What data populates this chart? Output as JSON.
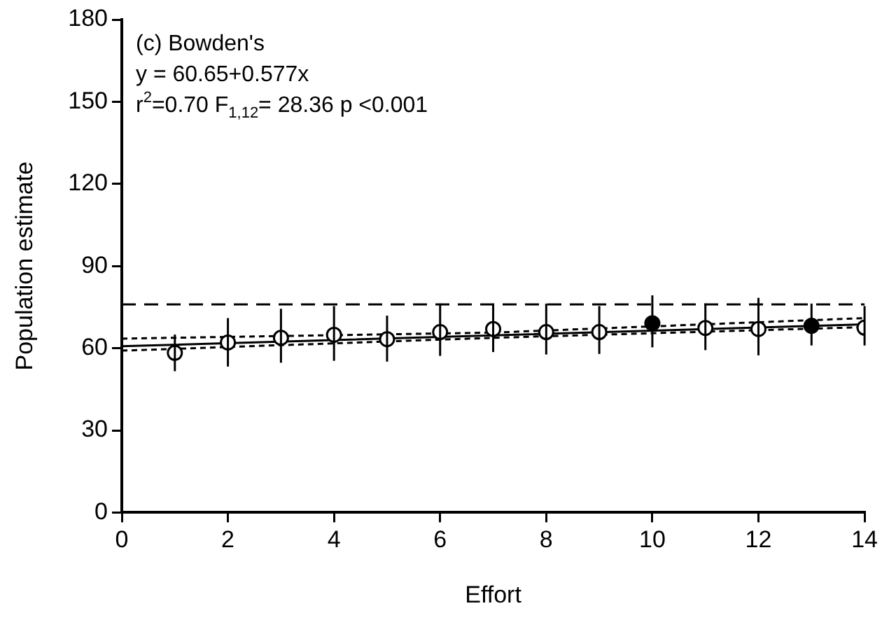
{
  "chart_data": {
    "type": "scatter",
    "xlabel": "Effort",
    "ylabel": "Population estimate",
    "annotations": [
      "(c) Bowden's",
      "y = 60.65+0.577x",
      "r$^{2}$=0.70 F$_{1,12}$= 28.36 p <0.001"
    ],
    "xlim": [
      0,
      14
    ],
    "xticks": [
      0,
      2,
      4,
      6,
      8,
      10,
      12,
      14
    ],
    "ylim": [
      0,
      180
    ],
    "yticks": [
      0,
      30,
      60,
      90,
      120,
      150,
      180
    ],
    "grid": false,
    "legend": false,
    "ref_lines": [
      {
        "axis": "y",
        "value": 76,
        "color": "#000000",
        "line_style": "dashed"
      }
    ],
    "series": [
      {
        "marker": "circle",
        "color": "#000000",
        "x": [
          1,
          2,
          3,
          4,
          5,
          6,
          7,
          8,
          9,
          10,
          11,
          12,
          13,
          14
        ],
        "values": [
          58.3,
          62.1,
          63.8,
          64.9,
          63.3,
          65.9,
          67,
          65.9,
          65.9,
          69.1,
          67.4,
          67,
          68.2,
          67.5
        ],
        "colors": [
          "#ffffff",
          "#ffffff",
          "#ffffff",
          "#ffffff",
          "#ffffff",
          "#ffffff",
          "#ffffff",
          "#ffffff",
          "#ffffff",
          "#000000",
          "#ffffff",
          "#ffffff",
          "#000000",
          "#ffffff"
        ],
        "errors": [
          [
            51.6,
            65
          ],
          [
            53.3,
            71
          ],
          [
            54.7,
            74.4
          ],
          [
            55.4,
            75.4
          ],
          [
            55.1,
            71.9
          ],
          [
            57.2,
            76.3
          ],
          [
            58.6,
            76.3
          ],
          [
            57.7,
            76.3
          ],
          [
            57.9,
            75.4
          ],
          [
            60.3,
            79.3
          ],
          [
            59.3,
            76.3
          ],
          [
            57.4,
            78.4
          ],
          [
            61,
            76.3
          ],
          [
            61,
            75.4
          ]
        ]
      },
      {
        "type": "line",
        "marker": "none",
        "line_style": "solid",
        "color": "#000000",
        "x": [
          0,
          7,
          14
        ],
        "values": [
          60.7,
          64.7,
          68.7
        ]
      },
      {
        "type": "line",
        "marker": "none",
        "line_style": "dotted",
        "color": "#000000",
        "x": [
          0,
          7,
          14
        ],
        "values": [
          59.1,
          63.8,
          67.7
        ]
      },
      {
        "type": "line",
        "marker": "none",
        "line_style": "dotted",
        "color": "#000000",
        "x": [
          0,
          7,
          14
        ],
        "values": [
          63.5,
          65.7,
          71
        ]
      }
    ]
  }
}
